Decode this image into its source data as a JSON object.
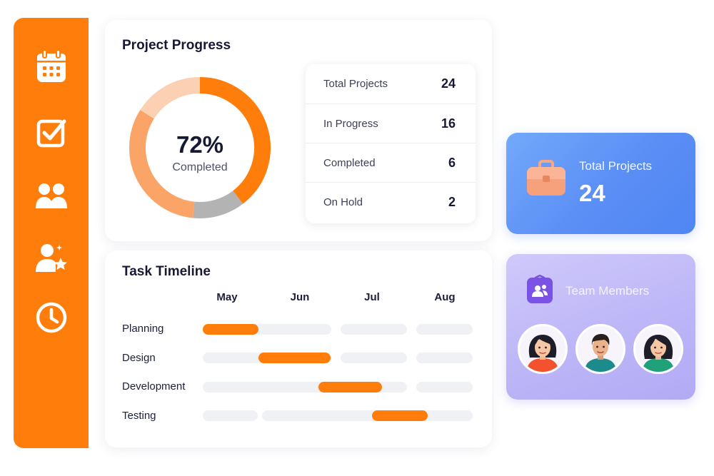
{
  "sidebar": {
    "items": [
      {
        "icon": "calendar-icon"
      },
      {
        "icon": "checkbox-icon"
      },
      {
        "icon": "team-icon"
      },
      {
        "icon": "user-star-icon"
      },
      {
        "icon": "clock-icon"
      }
    ]
  },
  "progress": {
    "title": "Project Progress",
    "percent_text": "72%",
    "percent_value": 72,
    "label": "Completed",
    "stats": [
      {
        "label": "Total Projects",
        "value": "24"
      },
      {
        "label": "In Progress",
        "value": "16"
      },
      {
        "label": "Completed",
        "value": "6"
      },
      {
        "label": "On Hold",
        "value": "2"
      }
    ]
  },
  "timeline": {
    "title": "Task Timeline",
    "months": [
      "May",
      "Jun",
      "Jul",
      "Aug"
    ],
    "tasks": [
      {
        "label": "Planning"
      },
      {
        "label": "Design"
      },
      {
        "label": "Development"
      },
      {
        "label": "Testing"
      }
    ]
  },
  "summary": {
    "label": "Total Projects",
    "value": "24"
  },
  "team": {
    "label": "Team Members"
  },
  "colors": {
    "accent": "#ff7d0a",
    "blue_card": "#5b8ef5",
    "purple_card": "#bdb6f7"
  }
}
